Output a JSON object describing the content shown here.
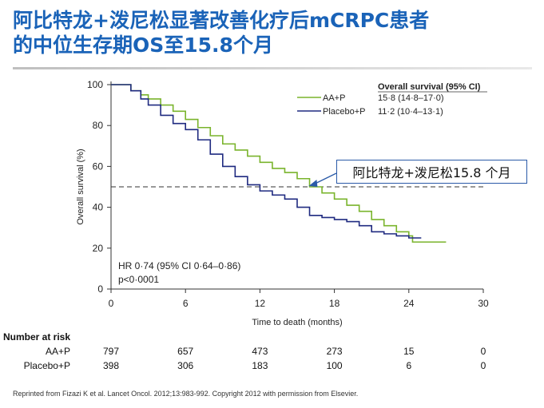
{
  "title": {
    "line1": "阿比特龙+泼尼松显著改善化疗后mCRPC患者",
    "line2": "的中位生存期OS至15.8个月"
  },
  "chart_data": {
    "type": "line",
    "subtype": "kaplan-meier",
    "xlabel": "Time to death (months)",
    "ylabel": "Overall survival (%)",
    "xlim": [
      0,
      30
    ],
    "ylim": [
      0,
      100
    ],
    "xticks": [
      0,
      6,
      12,
      18,
      24,
      30
    ],
    "yticks": [
      0,
      20,
      40,
      60,
      80,
      100
    ],
    "legend_header": "Overall survival (95% CI)",
    "legend_placement": "top-right",
    "series": [
      {
        "name": "AA+P",
        "stat": "15·8 (14·8–17·0)",
        "color": "#7ab42c",
        "x": [
          0,
          0.8,
          1.6,
          2.4,
          3,
          4,
          5,
          6,
          7,
          8,
          9,
          10,
          11,
          12,
          13,
          14,
          15,
          16,
          17,
          18,
          19,
          20,
          21,
          22,
          23,
          24,
          24.3,
          25,
          26,
          27
        ],
        "y": [
          100,
          100,
          97,
          95,
          93,
          90,
          87,
          83,
          79,
          75,
          71,
          68,
          65,
          62,
          59,
          57,
          54,
          50,
          47,
          44,
          41,
          38,
          34,
          31,
          28,
          26,
          23,
          23,
          23,
          23
        ]
      },
      {
        "name": "Placebo+P",
        "stat": "11·2 (10·4–13·1)",
        "color": "#1f2a80",
        "x": [
          0,
          0.8,
          1.6,
          2.4,
          3,
          4,
          5,
          6,
          7,
          8,
          9,
          10,
          11,
          12,
          13,
          14,
          15,
          16,
          17,
          18,
          19,
          20,
          21,
          22,
          23,
          24,
          24.3,
          25
        ],
        "y": [
          100,
          100,
          97,
          93,
          90,
          85,
          81,
          78,
          73,
          66,
          60,
          55,
          51,
          48,
          46,
          44,
          40,
          36,
          35,
          34,
          33,
          31,
          28,
          27,
          26,
          25,
          25,
          25
        ]
      }
    ],
    "reference_line_y": 50,
    "stats_text": [
      "HR 0·74 (95% CI 0·64–0·86)",
      "p<0·0001"
    ],
    "annotation": {
      "text": "阿比特龙+泼尼松15.8 个月",
      "arrow_to": [
        15.8,
        50
      ]
    }
  },
  "risk_table": {
    "header": "Number at risk",
    "times": [
      0,
      6,
      12,
      18,
      24,
      30
    ],
    "rows": [
      {
        "label": "AA+P",
        "values": [
          "797",
          "657",
          "473",
          "273",
          "15",
          "0"
        ]
      },
      {
        "label": "Placebo+P",
        "values": [
          "398",
          "306",
          "183",
          "100",
          "6",
          "0"
        ]
      }
    ]
  },
  "footer": "Reprinted from Fizazi K et al. Lancet Oncol. 2012;13:983-992. Copyright 2012 with permission from Elsevier."
}
